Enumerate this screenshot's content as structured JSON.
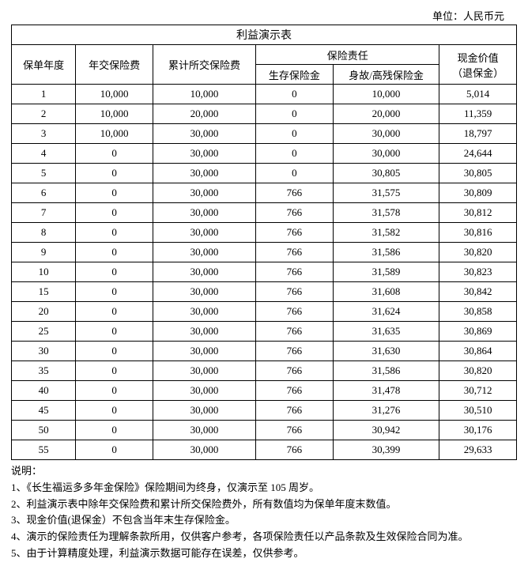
{
  "unit_label": "单位：人民币元",
  "table_title": "利益演示表",
  "headers": {
    "col1": "保单年度",
    "col2": "年交保险费",
    "col3": "累计所交保险费",
    "group": "保险责任",
    "col4": "生存保险金",
    "col5": "身故/高残保险金",
    "col6": "现金价值",
    "col6_sub": "（退保金）"
  },
  "rows": [
    {
      "y": "1",
      "a": "10,000",
      "b": "10,000",
      "c": "0",
      "d": "10,000",
      "e": "5,014"
    },
    {
      "y": "2",
      "a": "10,000",
      "b": "20,000",
      "c": "0",
      "d": "20,000",
      "e": "11,359"
    },
    {
      "y": "3",
      "a": "10,000",
      "b": "30,000",
      "c": "0",
      "d": "30,000",
      "e": "18,797"
    },
    {
      "y": "4",
      "a": "0",
      "b": "30,000",
      "c": "0",
      "d": "30,000",
      "e": "24,644"
    },
    {
      "y": "5",
      "a": "0",
      "b": "30,000",
      "c": "0",
      "d": "30,805",
      "e": "30,805"
    },
    {
      "y": "6",
      "a": "0",
      "b": "30,000",
      "c": "766",
      "d": "31,575",
      "e": "30,809"
    },
    {
      "y": "7",
      "a": "0",
      "b": "30,000",
      "c": "766",
      "d": "31,578",
      "e": "30,812"
    },
    {
      "y": "8",
      "a": "0",
      "b": "30,000",
      "c": "766",
      "d": "31,582",
      "e": "30,816"
    },
    {
      "y": "9",
      "a": "0",
      "b": "30,000",
      "c": "766",
      "d": "31,586",
      "e": "30,820"
    },
    {
      "y": "10",
      "a": "0",
      "b": "30,000",
      "c": "766",
      "d": "31,589",
      "e": "30,823"
    },
    {
      "y": "15",
      "a": "0",
      "b": "30,000",
      "c": "766",
      "d": "31,608",
      "e": "30,842"
    },
    {
      "y": "20",
      "a": "0",
      "b": "30,000",
      "c": "766",
      "d": "31,624",
      "e": "30,858"
    },
    {
      "y": "25",
      "a": "0",
      "b": "30,000",
      "c": "766",
      "d": "31,635",
      "e": "30,869"
    },
    {
      "y": "30",
      "a": "0",
      "b": "30,000",
      "c": "766",
      "d": "31,630",
      "e": "30,864"
    },
    {
      "y": "35",
      "a": "0",
      "b": "30,000",
      "c": "766",
      "d": "31,586",
      "e": "30,820"
    },
    {
      "y": "40",
      "a": "0",
      "b": "30,000",
      "c": "766",
      "d": "31,478",
      "e": "30,712"
    },
    {
      "y": "45",
      "a": "0",
      "b": "30,000",
      "c": "766",
      "d": "31,276",
      "e": "30,510"
    },
    {
      "y": "50",
      "a": "0",
      "b": "30,000",
      "c": "766",
      "d": "30,942",
      "e": "30,176"
    },
    {
      "y": "55",
      "a": "0",
      "b": "30,000",
      "c": "766",
      "d": "30,399",
      "e": "29,633"
    }
  ],
  "notes_label": "说明：",
  "notes": [
    "1、《长生福运多多年金保险》保险期间为终身，仅演示至 105 周岁。",
    "2、利益演示表中除年交保险费和累计所交保险费外，所有数值均为保单年度末数值。",
    "3、现金价值(退保金）不包含当年末生存保险金。",
    "4、演示的保险责任为理解条款所用，仅供客户参考，各项保险责任以产品条款及生效保险合同为准。",
    "5、由于计算精度处理，利益演示数据可能存在误差，仅供参考。"
  ]
}
